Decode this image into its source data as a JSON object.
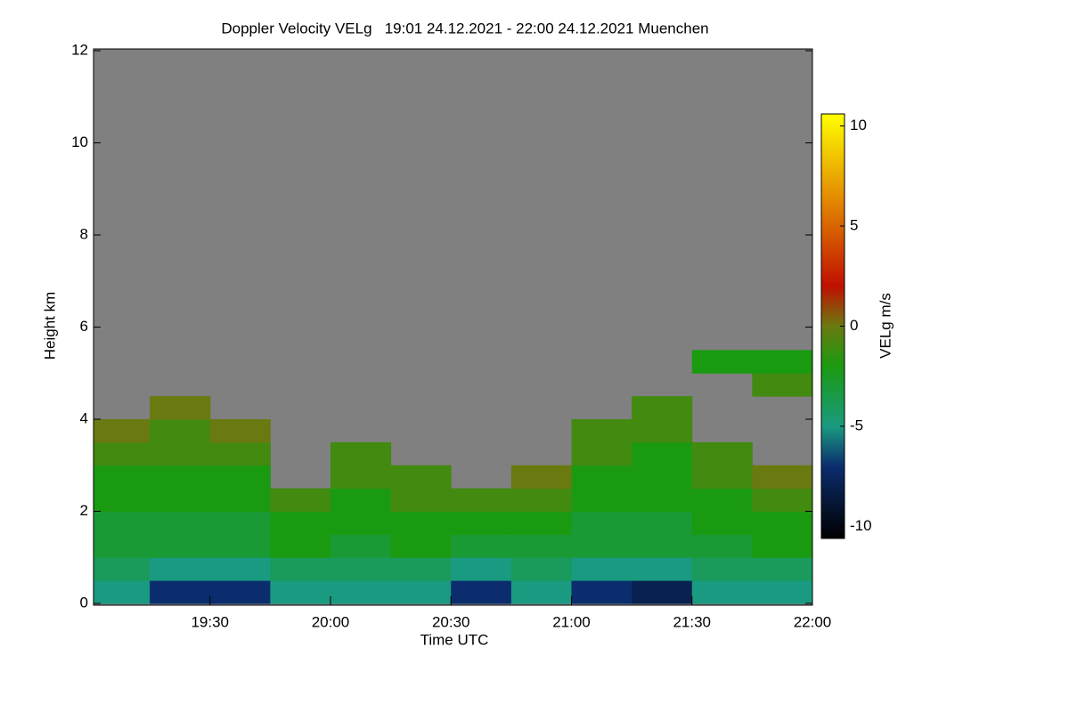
{
  "chart_data": {
    "type": "heatmap",
    "title": "Doppler Velocity VELg   19:01 24.12.2021 - 22:00 24.12.2021 Muenchen",
    "x_label": "Time UTC",
    "y_label": "Height km",
    "colorbar_label": "VELg m/s",
    "xbins": [
      19.0167,
      19.25,
      19.5,
      19.75,
      20,
      20.25,
      20.5,
      20.75,
      21,
      21.25,
      21.5,
      21.75,
      22
    ],
    "ybins": [
      0,
      0.5,
      1,
      1.5,
      2,
      2.5,
      3,
      3.5,
      4,
      4.5,
      5,
      5.5,
      6
    ],
    "values": [
      [
        -5,
        -4,
        -3,
        -3,
        -2,
        -2,
        -1,
        0,
        null,
        null,
        null,
        null
      ],
      [
        -7,
        -5,
        -3,
        -3,
        -2,
        -2,
        -1,
        -1,
        0,
        null,
        null,
        null
      ],
      [
        -7,
        -5,
        -3,
        -3,
        -2,
        -2,
        -1,
        0,
        null,
        null,
        null,
        null
      ],
      [
        -5,
        -4,
        -2,
        -2,
        -1,
        null,
        null,
        null,
        null,
        null,
        null,
        null
      ],
      [
        -5,
        -4,
        -3,
        -2,
        -2,
        -1,
        -1,
        null,
        null,
        null,
        null,
        null
      ],
      [
        -5,
        -4,
        -2,
        -2,
        -1,
        -1,
        null,
        null,
        null,
        null,
        null,
        null
      ],
      [
        -7,
        -5,
        -3,
        -2,
        -1,
        null,
        null,
        null,
        null,
        null,
        null,
        null
      ],
      [
        -5,
        -4,
        -3,
        -2,
        -1,
        0,
        null,
        null,
        null,
        null,
        null,
        null
      ],
      [
        -7,
        -5,
        -3,
        -3,
        -2,
        -2,
        -1,
        -1,
        null,
        null,
        null,
        null
      ],
      [
        -8,
        -5,
        -3,
        -3,
        -2,
        -2,
        -2,
        -1,
        -1,
        null,
        null,
        null
      ],
      [
        -5,
        -4,
        -3,
        -2,
        -2,
        -1,
        -1,
        null,
        null,
        null,
        -2,
        null
      ],
      [
        -5,
        -4,
        -2,
        -2,
        -1,
        0,
        null,
        null,
        null,
        -1,
        -2,
        null
      ]
    ],
    "missing_color": "#808080",
    "colormap": [
      {
        "value": -10.6,
        "color": "#000000"
      },
      {
        "value": -7,
        "color": "#0b2d6e"
      },
      {
        "value": -5,
        "color": "#1a9a80"
      },
      {
        "value": -2,
        "color": "#1a9a10"
      },
      {
        "value": 0,
        "color": "#6a7a10"
      },
      {
        "value": 2,
        "color": "#c01000"
      },
      {
        "value": 6,
        "color": "#e08000"
      },
      {
        "value": 10.6,
        "color": "#ffff00"
      }
    ],
    "xlim": [
      19.0167,
      22
    ],
    "ylim": [
      0,
      12
    ],
    "clim": [
      -10.6,
      10.6
    ],
    "xticks": [
      {
        "value": 19.5,
        "label": "19:30"
      },
      {
        "value": 20,
        "label": "20:00"
      },
      {
        "value": 20.5,
        "label": "20:30"
      },
      {
        "value": 21,
        "label": "21:00"
      },
      {
        "value": 21.5,
        "label": "21:30"
      },
      {
        "value": 22,
        "label": "22:00"
      }
    ],
    "yticks": [
      0,
      2,
      4,
      6,
      8,
      10,
      12
    ],
    "cticks": [
      -10,
      -5,
      0,
      5,
      10
    ]
  }
}
